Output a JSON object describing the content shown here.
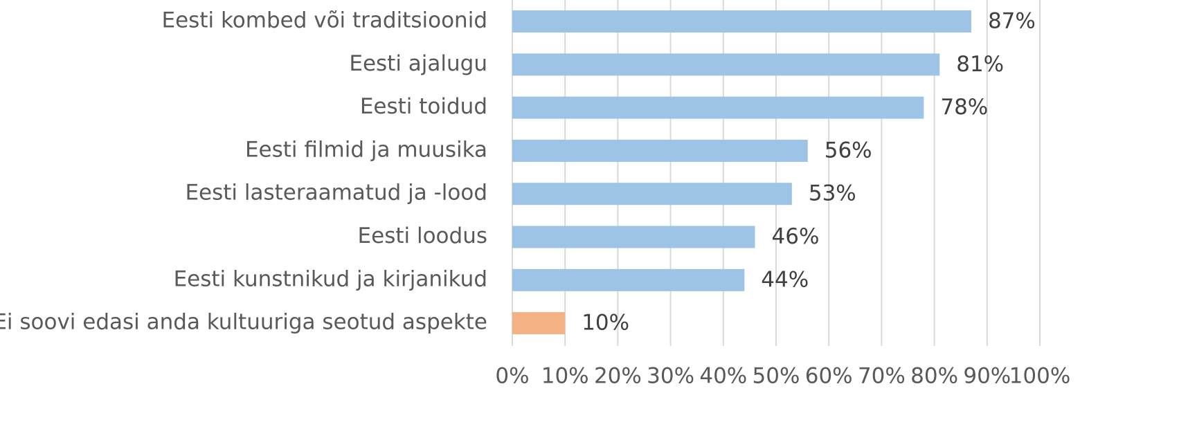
{
  "chart_data": {
    "type": "bar",
    "orientation": "horizontal",
    "categories": [
      "Eesti kombed või traditsioonid",
      "Eesti ajalugu",
      "Eesti toidud",
      "Eesti filmid ja muusika",
      "Eesti lasteraamatud ja -lood",
      "Eesti loodus",
      "Eesti kunstnikud ja kirjanikud",
      "Ei soovi edasi anda kultuuriga seotud aspekte"
    ],
    "values": [
      87,
      81,
      78,
      56,
      53,
      46,
      44,
      10
    ],
    "value_labels": [
      "87%",
      "81%",
      "78%",
      "56%",
      "53%",
      "46%",
      "44%",
      "10%"
    ],
    "bar_colors": [
      "#9dc3e6",
      "#9dc3e6",
      "#9dc3e6",
      "#9dc3e6",
      "#9dc3e6",
      "#9dc3e6",
      "#9dc3e6",
      "#f4b183"
    ],
    "xlim": [
      0,
      100
    ],
    "x_ticks": [
      0,
      10,
      20,
      30,
      40,
      50,
      60,
      70,
      80,
      90,
      100
    ],
    "x_tick_labels": [
      "0%",
      "10%",
      "20%",
      "30%",
      "40%",
      "50%",
      "60%",
      "70%",
      "80%",
      "90%",
      "100%"
    ],
    "grid": "vertical",
    "legend": "none",
    "title": "",
    "xlabel": "",
    "ylabel": ""
  }
}
